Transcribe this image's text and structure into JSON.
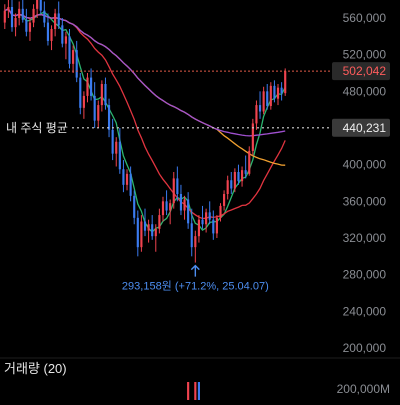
{
  "chart_data": {
    "type": "candlestick",
    "y_axis_ticks": [
      "560,000",
      "520,000",
      "480,000",
      "440,000",
      "400,000",
      "360,000",
      "320,000",
      "280,000",
      "240,000",
      "200,000"
    ],
    "y_tick_values": [
      560000,
      520000,
      480000,
      440000,
      400000,
      360000,
      320000,
      280000,
      240000,
      200000
    ],
    "ylim": [
      180000,
      590000
    ],
    "current_price": {
      "value": 502042,
      "label": "502,042",
      "color": "#ff5c5c"
    },
    "avg_price": {
      "value": 440231,
      "label": "440,231",
      "caption": "내 주식 평균"
    },
    "low_annotation": {
      "value": 293158,
      "text": "293,158원 (+71.2%, 25.04.07)",
      "color": "#4d8ef0"
    },
    "ohlc": [
      [
        555000,
        575000,
        548000,
        568000
      ],
      [
        568000,
        585000,
        560000,
        572000
      ],
      [
        572000,
        580000,
        545000,
        550000
      ],
      [
        550000,
        565000,
        540000,
        560000
      ],
      [
        560000,
        578000,
        552000,
        570000
      ],
      [
        570000,
        582000,
        555000,
        558000
      ],
      [
        558000,
        570000,
        540000,
        545000
      ],
      [
        545000,
        560000,
        535000,
        555000
      ],
      [
        555000,
        575000,
        550000,
        570000
      ],
      [
        570000,
        590000,
        560000,
        585000
      ],
      [
        585000,
        592000,
        565000,
        568000
      ],
      [
        568000,
        578000,
        550000,
        555000
      ],
      [
        555000,
        565000,
        530000,
        535000
      ],
      [
        535000,
        552000,
        525000,
        548000
      ],
      [
        548000,
        570000,
        540000,
        565000
      ],
      [
        565000,
        578000,
        548000,
        552000
      ],
      [
        552000,
        560000,
        528000,
        532000
      ],
      [
        532000,
        545000,
        515000,
        540000
      ],
      [
        540000,
        548000,
        505000,
        510000
      ],
      [
        510000,
        530000,
        500000,
        525000
      ],
      [
        525000,
        535000,
        490000,
        495000
      ],
      [
        495000,
        500000,
        455000,
        462000
      ],
      [
        462000,
        480000,
        450000,
        475000
      ],
      [
        475000,
        500000,
        468000,
        495000
      ],
      [
        495000,
        505000,
        470000,
        475000
      ],
      [
        475000,
        490000,
        440000,
        448000
      ],
      [
        448000,
        470000,
        440000,
        465000
      ],
      [
        465000,
        492000,
        458000,
        488000
      ],
      [
        488000,
        495000,
        460000,
        465000
      ],
      [
        465000,
        472000,
        430000,
        438000
      ],
      [
        438000,
        450000,
        405000,
        412000
      ],
      [
        412000,
        430000,
        398000,
        425000
      ],
      [
        425000,
        440000,
        390000,
        395000
      ],
      [
        395000,
        405000,
        370000,
        378000
      ],
      [
        378000,
        395000,
        372000,
        390000
      ],
      [
        390000,
        398000,
        360000,
        366000
      ],
      [
        366000,
        372000,
        335000,
        342000
      ],
      [
        342000,
        350000,
        300000,
        310000
      ],
      [
        310000,
        345000,
        305000,
        338000
      ],
      [
        338000,
        352000,
        322000,
        328000
      ],
      [
        328000,
        340000,
        315000,
        335000
      ],
      [
        335000,
        345000,
        318000,
        322000
      ],
      [
        322000,
        335000,
        305000,
        330000
      ],
      [
        330000,
        352000,
        325000,
        345000
      ],
      [
        345000,
        365000,
        338000,
        360000
      ],
      [
        360000,
        372000,
        345000,
        350000
      ],
      [
        350000,
        362000,
        335000,
        358000
      ],
      [
        358000,
        392000,
        352000,
        385000
      ],
      [
        385000,
        398000,
        360000,
        368000
      ],
      [
        368000,
        378000,
        345000,
        350000
      ],
      [
        350000,
        366000,
        340000,
        362000
      ],
      [
        362000,
        370000,
        330000,
        336000
      ],
      [
        336000,
        352000,
        300000,
        310000
      ],
      [
        310000,
        328000,
        293158,
        322000
      ],
      [
        322000,
        345000,
        315000,
        340000
      ],
      [
        340000,
        355000,
        330000,
        335000
      ],
      [
        335000,
        352000,
        326000,
        348000
      ],
      [
        348000,
        360000,
        335000,
        340000
      ],
      [
        340000,
        350000,
        318000,
        325000
      ],
      [
        325000,
        345000,
        320000,
        342000
      ],
      [
        342000,
        358000,
        338000,
        355000
      ],
      [
        355000,
        372000,
        350000,
        368000
      ],
      [
        368000,
        388000,
        362000,
        383000
      ],
      [
        383000,
        392000,
        368000,
        374000
      ],
      [
        374000,
        396000,
        370000,
        392000
      ],
      [
        392000,
        400000,
        378000,
        382000
      ],
      [
        382000,
        398000,
        376000,
        394000
      ],
      [
        394000,
        410000,
        385000,
        390000
      ],
      [
        390000,
        420000,
        388000,
        415000
      ],
      [
        415000,
        450000,
        410000,
        445000
      ],
      [
        445000,
        470000,
        438000,
        465000
      ],
      [
        465000,
        480000,
        450000,
        458000
      ],
      [
        458000,
        485000,
        455000,
        480000
      ],
      [
        480000,
        488000,
        460000,
        464000
      ],
      [
        464000,
        490000,
        460000,
        486000
      ],
      [
        486000,
        492000,
        468000,
        472000
      ],
      [
        472000,
        488000,
        465000,
        484000
      ],
      [
        484000,
        490000,
        470000,
        478000
      ],
      [
        478000,
        505000,
        475000,
        502042
      ]
    ],
    "volume_title": "거래량 (20)",
    "volume_tick": "200,000M",
    "volume_tick_value": 200000
  }
}
